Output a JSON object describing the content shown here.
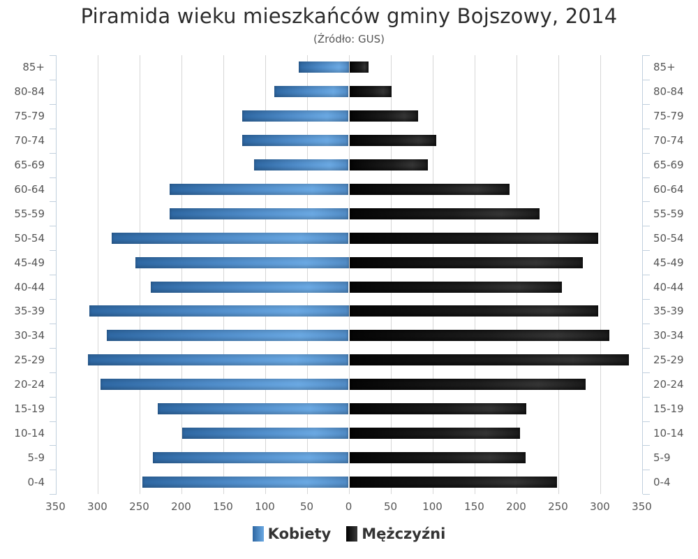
{
  "header": {
    "title": "Piramida wieku mieszkańców gminy Bojszowy, 2014",
    "subtitle": "(Źródło: GUS)"
  },
  "legend": [
    {
      "label": "Kobiety",
      "color": "#4f8cc9",
      "icon": "square-swatch-icon"
    },
    {
      "label": "Mężczyźni",
      "color": "#1a1a1a",
      "icon": "square-swatch-icon"
    }
  ],
  "chart_data": {
    "type": "bar",
    "orientation": "horizontal-population-pyramid",
    "title": "Piramida wieku mieszkańców gminy Bojszowy, 2014",
    "subtitle": "(Źródło: GUS)",
    "xlabel": "",
    "ylabel": "",
    "categories": [
      "85+",
      "80-84",
      "75-79",
      "70-74",
      "65-69",
      "60-64",
      "55-59",
      "50-54",
      "45-49",
      "40-44",
      "35-39",
      "30-34",
      "25-29",
      "20-24",
      "15-19",
      "10-14",
      "5-9",
      "0-4"
    ],
    "series": [
      {
        "name": "Kobiety",
        "color": "#4f8cc9",
        "side": "left",
        "values": [
          60,
          89,
          127,
          127,
          113,
          214,
          214,
          283,
          255,
          236,
          310,
          289,
          311,
          296,
          228,
          199,
          234,
          246
        ]
      },
      {
        "name": "Mężczyźni",
        "color": "#1a1a1a",
        "side": "right",
        "values": [
          23,
          50,
          82,
          104,
          94,
          191,
          227,
          297,
          279,
          254,
          297,
          310,
          334,
          282,
          211,
          204,
          210,
          248
        ]
      }
    ],
    "x_ticks_left": [
      "350",
      "300",
      "250",
      "200",
      "150",
      "100",
      "50",
      "0"
    ],
    "x_ticks_right": [
      "50",
      "100",
      "150",
      "200",
      "250",
      "300",
      "350"
    ],
    "xlim": [
      -350,
      350
    ],
    "grid": true,
    "legend_position": "bottom-center"
  }
}
